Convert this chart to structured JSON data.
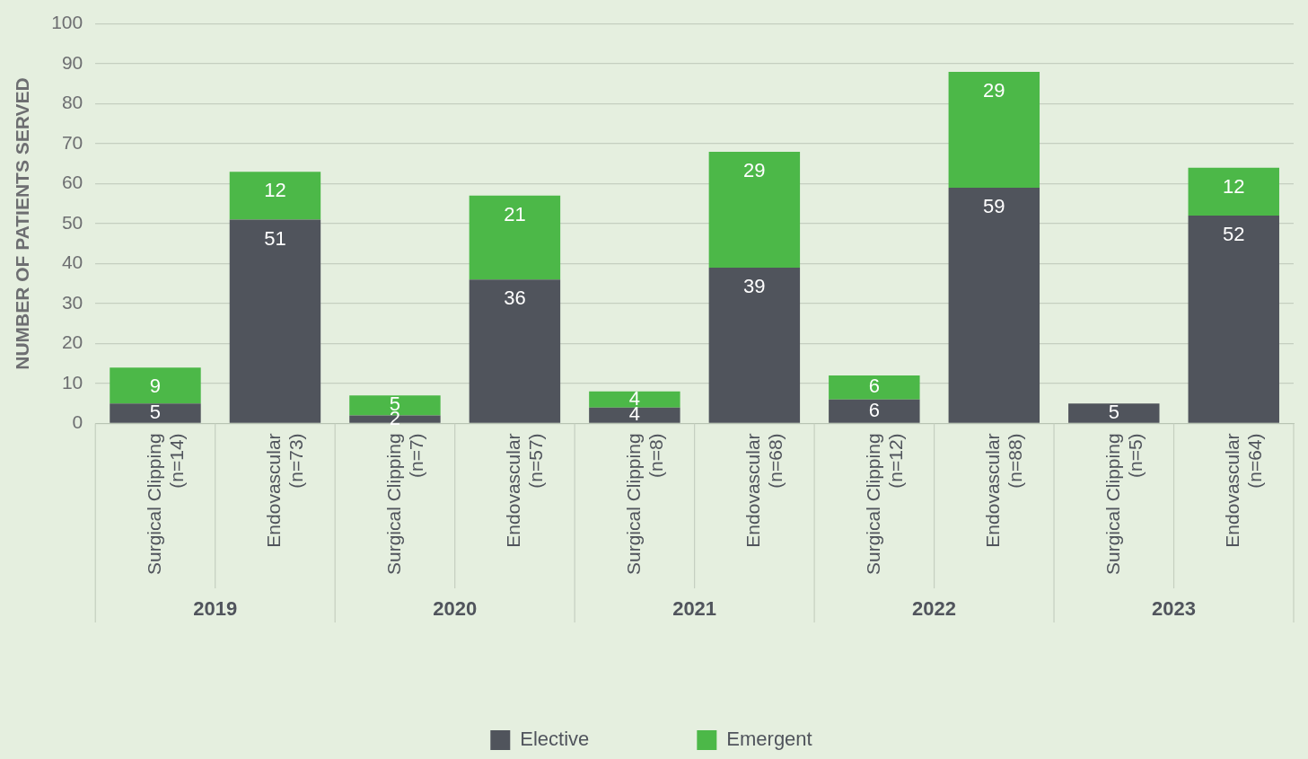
{
  "chart_data": {
    "type": "bar",
    "stacked": true,
    "ylabel": "NUMBER OF PATIENTS SERVED",
    "categories": [
      "Surgical Clipping (n=14)",
      "Endovascular (n=73)",
      "Surgical Clipping (n=7)",
      "Endovascular (n=57)",
      "Surgical Clipping (n=8)",
      "Endovascular (n=68)",
      "Surgical Clipping (n=12)",
      "Endovascular (n=88)",
      "Surgical Clipping (n=5)",
      "Endovascular (n=64)"
    ],
    "series": [
      {
        "name": "Elective",
        "color": "#50545c",
        "values": [
          5,
          51,
          2,
          36,
          4,
          39,
          6,
          59,
          5,
          52
        ]
      },
      {
        "name": "Emergent",
        "color": "#4cb848",
        "values": [
          9,
          12,
          5,
          21,
          4,
          29,
          6,
          29,
          null,
          12
        ]
      }
    ],
    "annotations": [
      "2019",
      "2020",
      "2021",
      "2022",
      "2023"
    ],
    "ylim": [
      0,
      100
    ],
    "yticks": [
      0,
      10,
      20,
      30,
      40,
      50,
      60,
      70,
      80,
      90,
      100
    ],
    "grid": "y",
    "legend": "bottom",
    "data_labels": true
  }
}
